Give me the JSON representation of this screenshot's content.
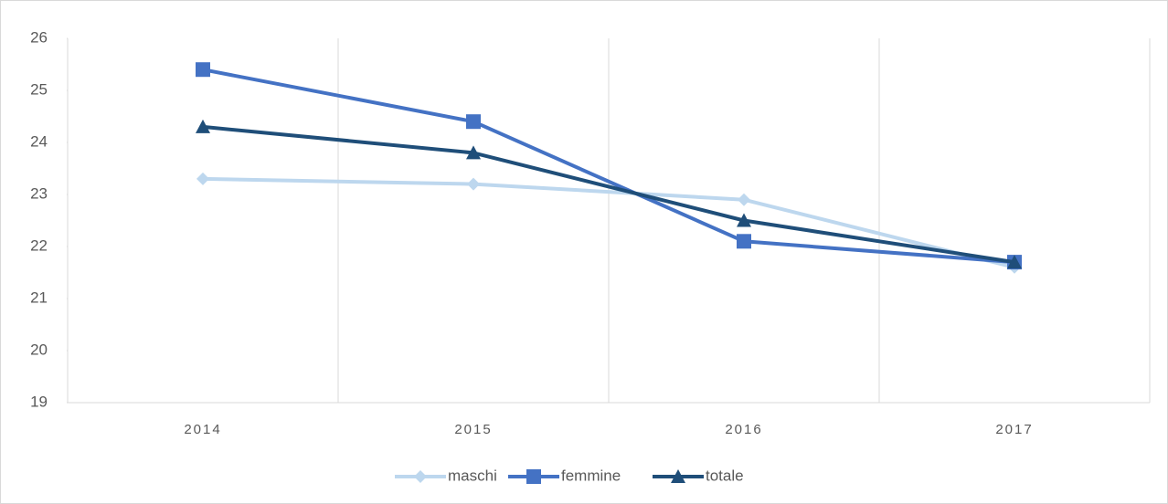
{
  "chart_data": {
    "type": "line",
    "categories": [
      "2014",
      "2015",
      "2016",
      "2017"
    ],
    "series": [
      {
        "name": "maschi",
        "color": "#bdd7ee",
        "marker": "diamond",
        "values": [
          23.3,
          23.2,
          22.9,
          21.6
        ]
      },
      {
        "name": "femmine",
        "color": "#4472c4",
        "marker": "square",
        "values": [
          25.4,
          24.4,
          22.1,
          21.7
        ]
      },
      {
        "name": "totale",
        "color": "#1f4e79",
        "marker": "triangle",
        "values": [
          24.3,
          23.8,
          22.5,
          21.7
        ]
      }
    ],
    "ylim": [
      19,
      26
    ],
    "yticks": [
      19,
      20,
      21,
      22,
      23,
      24,
      25,
      26
    ],
    "grid": true,
    "legend": "bottom"
  }
}
